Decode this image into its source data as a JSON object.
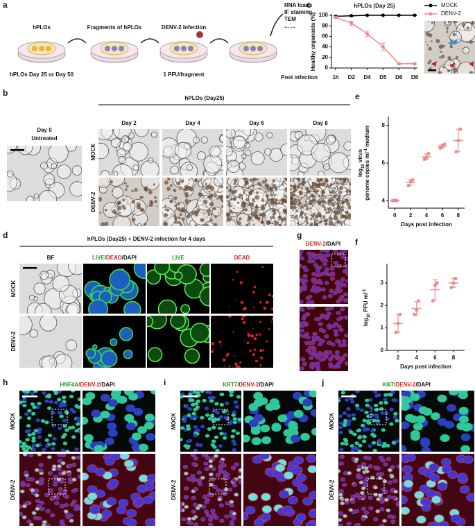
{
  "panels": {
    "a": {
      "label": "a",
      "steps": [
        "hPLOs",
        "Fragments of hPLOs",
        "DENV-2 Infection"
      ],
      "readouts": [
        "RNA loads",
        "IF staining",
        "TEM",
        "... ..."
      ],
      "note1": "hPLOs Day 25 or Day 50",
      "note2": "1 PFU/fragment"
    },
    "b": {
      "label": "b",
      "title": "hPLOs (Day25)",
      "day0": "Day 0",
      "untreated": "Untreated",
      "days": [
        "Day 2",
        "Day 4",
        "Day 6",
        "Day 8"
      ],
      "rows": [
        "MOCK",
        "DENV-2"
      ]
    },
    "c": {
      "label": "c"
    },
    "d": {
      "label": "d",
      "title": "hPLOs (Day25) + DENV-2 infection for 4 days",
      "columns": [
        [
          "BF"
        ],
        [
          "LIVE",
          "/",
          "DEAD",
          "/DAPI"
        ],
        [
          "LIVE"
        ],
        [
          "DEAD"
        ]
      ],
      "rows": [
        "MOCK",
        "DENV-2"
      ]
    },
    "e": {
      "label": "e"
    },
    "f": {
      "label": "f"
    },
    "g": {
      "label": "g",
      "header": [
        "DENV-2",
        "/DAPI"
      ]
    },
    "h": {
      "label": "h",
      "header": [
        "HNF4A",
        "/DENV-2",
        "/DAPI"
      ],
      "rows": [
        "MOCK",
        "DENV-2"
      ]
    },
    "i": {
      "label": "i",
      "header": [
        "KRT7",
        "/DENV-2",
        "/DAPI"
      ],
      "rows": [
        "MOCK",
        "DENV-2"
      ]
    },
    "j": {
      "label": "j",
      "header": [
        "KI67",
        "/DENV-2",
        "/DAPI"
      ],
      "rows": [
        "MOCK",
        "DENV-2"
      ]
    }
  },
  "chart_data": [
    {
      "type": "line",
      "title": "hPLOs (Day 25)",
      "ylabel": "Healthy organoids (%)",
      "xlabel": "Post infection",
      "categories": [
        "1h",
        "D2",
        "D4",
        "D5",
        "D6",
        "D8"
      ],
      "ylim": [
        0,
        100
      ],
      "yticks": [
        0,
        20,
        40,
        60,
        80,
        100
      ],
      "legend": "upper right",
      "series": [
        {
          "name": "MOCK",
          "color": "#000000",
          "values": [
            98,
            99,
            100,
            100,
            100,
            100
          ],
          "errors": [
            1,
            1,
            0.5,
            0.5,
            0.5,
            0.5
          ]
        },
        {
          "name": "DENV-2",
          "color": "#f08a8a",
          "values": [
            96,
            85,
            65,
            40,
            8,
            8
          ],
          "errors": [
            2,
            4,
            5,
            7,
            2,
            2
          ]
        }
      ]
    },
    {
      "type": "scatter",
      "ylabel": [
        [
          "log",
          "10",
          " virus"
        ],
        [
          "genome copies ml",
          "-1",
          " medium"
        ]
      ],
      "xlabel": "Days post infection",
      "x": [
        0,
        2,
        4,
        6,
        8
      ],
      "xlim": [
        -0.8,
        8.8
      ],
      "xticks": [
        0,
        2,
        4,
        6,
        8
      ],
      "ylim": [
        3.6,
        8.4
      ],
      "yticks": [
        4,
        6,
        8
      ],
      "color": "#f08a8a",
      "points": [
        [
          4,
          4,
          4
        ],
        [
          4.8,
          5,
          5.1
        ],
        [
          6.2,
          6.3,
          6.5
        ],
        [
          6.8,
          6.9,
          7
        ],
        [
          6.6,
          7.2,
          7.8
        ]
      ],
      "values": [
        4,
        4.97,
        6.33,
        6.9,
        7.2
      ],
      "errors": [
        0,
        0.15,
        0.15,
        0.1,
        0.6
      ]
    },
    {
      "type": "scatter",
      "ylabel": [
        [
          "log",
          "10",
          " PFU ml",
          "-1"
        ]
      ],
      "xlabel": "Days post infection",
      "x": [
        2,
        4,
        6,
        8
      ],
      "xlim": [
        0.8,
        9.2
      ],
      "xticks": [
        2,
        4,
        6,
        8
      ],
      "ylim": [
        0,
        3.8
      ],
      "yticks": [
        0,
        1,
        2,
        3
      ],
      "color": "#f08a8a",
      "points": [
        [
          0.8,
          1.2,
          1.6
        ],
        [
          1.6,
          1.8,
          2.2
        ],
        [
          2.2,
          2.9,
          3
        ],
        [
          2.8,
          3,
          3.2
        ]
      ],
      "values": [
        1.2,
        1.87,
        2.7,
        3
      ],
      "errors": [
        0.4,
        0.3,
        0.45,
        0.2
      ]
    }
  ]
}
